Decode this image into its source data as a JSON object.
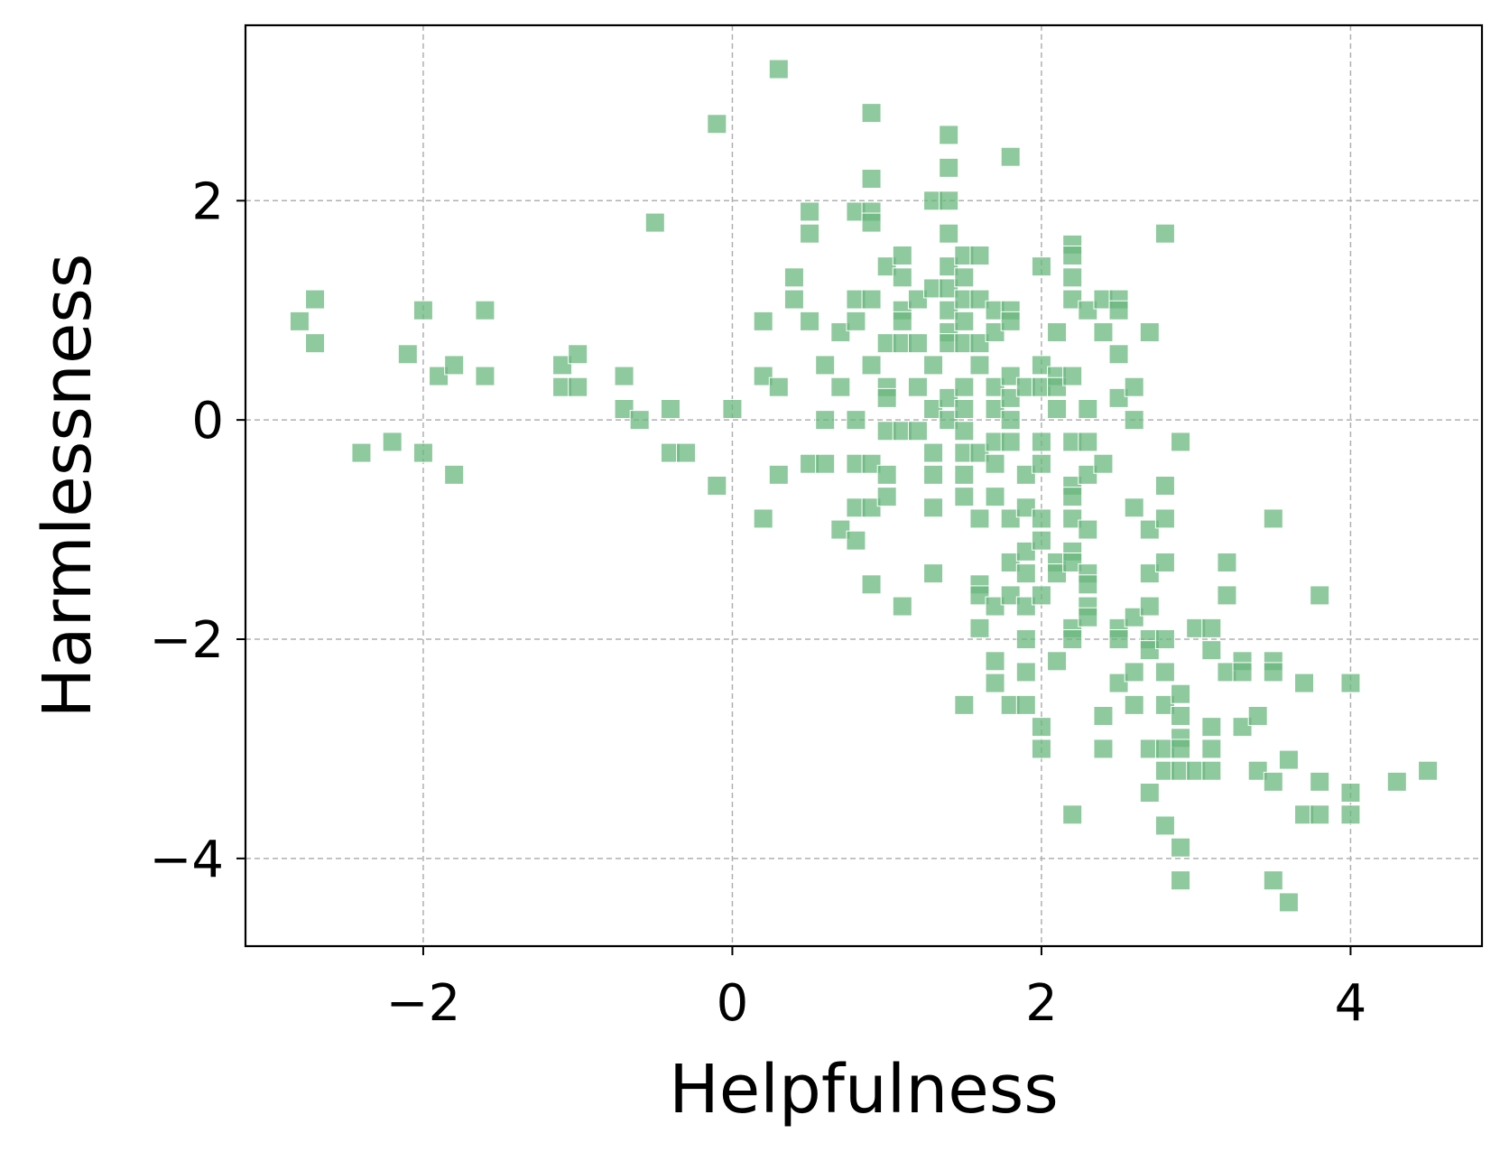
{
  "chart_data": {
    "type": "scatter",
    "xlabel": "Helpfulness",
    "ylabel": "Harmlessness",
    "xlim": [
      -3.15,
      4.85
    ],
    "ylim": [
      -4.8,
      3.6
    ],
    "x_ticks": [
      -2,
      0,
      2,
      4
    ],
    "y_ticks": [
      -4,
      -2,
      0,
      2
    ],
    "x_tick_labels": [
      "−2",
      "0",
      "2",
      "4"
    ],
    "y_tick_labels": [
      "−4",
      "−2",
      "0",
      "2"
    ],
    "grid": true,
    "marker": "square",
    "color": "#6ab77d",
    "points": [
      [
        -2.8,
        0.9
      ],
      [
        -2.7,
        1.1
      ],
      [
        -2.7,
        0.7
      ],
      [
        -2.4,
        -0.3
      ],
      [
        -2.2,
        -0.2
      ],
      [
        -2.1,
        0.6
      ],
      [
        -2.0,
        1.0
      ],
      [
        -2.0,
        -0.3
      ],
      [
        -1.9,
        0.4
      ],
      [
        -1.8,
        0.5
      ],
      [
        -1.8,
        -0.5
      ],
      [
        -1.6,
        1.0
      ],
      [
        -1.6,
        0.4
      ],
      [
        -1.1,
        0.5
      ],
      [
        -1.1,
        0.3
      ],
      [
        -1.0,
        0.6
      ],
      [
        -1.0,
        0.3
      ],
      [
        -0.7,
        0.4
      ],
      [
        -0.7,
        0.1
      ],
      [
        -0.6,
        0.0
      ],
      [
        -0.5,
        1.8
      ],
      [
        -0.4,
        0.1
      ],
      [
        -0.4,
        -0.3
      ],
      [
        -0.3,
        -0.3
      ],
      [
        -0.1,
        2.7
      ],
      [
        -0.1,
        -0.6
      ],
      [
        0.0,
        0.1
      ],
      [
        0.2,
        0.9
      ],
      [
        0.2,
        0.4
      ],
      [
        0.2,
        -0.9
      ],
      [
        0.3,
        3.2
      ],
      [
        0.3,
        0.3
      ],
      [
        0.3,
        -0.5
      ],
      [
        0.4,
        1.3
      ],
      [
        0.4,
        1.1
      ],
      [
        0.5,
        1.9
      ],
      [
        0.5,
        1.7
      ],
      [
        0.5,
        0.9
      ],
      [
        0.5,
        -0.4
      ],
      [
        0.6,
        0.5
      ],
      [
        0.6,
        0.0
      ],
      [
        0.6,
        -0.4
      ],
      [
        0.7,
        0.8
      ],
      [
        0.7,
        0.3
      ],
      [
        0.7,
        -1.0
      ],
      [
        0.8,
        1.9
      ],
      [
        0.8,
        1.1
      ],
      [
        0.8,
        0.9
      ],
      [
        0.8,
        0.0
      ],
      [
        0.8,
        -0.4
      ],
      [
        0.8,
        -0.8
      ],
      [
        0.8,
        -1.1
      ],
      [
        0.9,
        2.8
      ],
      [
        0.9,
        2.2
      ],
      [
        0.9,
        1.9
      ],
      [
        0.9,
        1.8
      ],
      [
        0.9,
        1.1
      ],
      [
        0.9,
        0.5
      ],
      [
        0.9,
        -0.4
      ],
      [
        0.9,
        -0.8
      ],
      [
        0.9,
        -1.5
      ],
      [
        1.0,
        1.4
      ],
      [
        1.0,
        0.7
      ],
      [
        1.0,
        0.3
      ],
      [
        1.0,
        0.2
      ],
      [
        1.0,
        -0.1
      ],
      [
        1.0,
        -0.5
      ],
      [
        1.0,
        -0.7
      ],
      [
        1.1,
        1.5
      ],
      [
        1.1,
        1.3
      ],
      [
        1.1,
        1.0
      ],
      [
        1.1,
        0.9
      ],
      [
        1.1,
        0.7
      ],
      [
        1.1,
        -0.1
      ],
      [
        1.1,
        -1.7
      ],
      [
        1.2,
        1.1
      ],
      [
        1.2,
        0.7
      ],
      [
        1.2,
        0.3
      ],
      [
        1.2,
        -0.1
      ],
      [
        1.3,
        2.0
      ],
      [
        1.3,
        1.2
      ],
      [
        1.3,
        0.5
      ],
      [
        1.3,
        0.1
      ],
      [
        1.3,
        -0.3
      ],
      [
        1.3,
        -0.5
      ],
      [
        1.3,
        -0.8
      ],
      [
        1.3,
        -1.4
      ],
      [
        1.4,
        2.6
      ],
      [
        1.4,
        2.3
      ],
      [
        1.4,
        2.0
      ],
      [
        1.4,
        1.7
      ],
      [
        1.4,
        1.4
      ],
      [
        1.4,
        1.2
      ],
      [
        1.4,
        1.0
      ],
      [
        1.4,
        0.8
      ],
      [
        1.4,
        0.7
      ],
      [
        1.4,
        0.2
      ],
      [
        1.4,
        0.0
      ],
      [
        1.5,
        1.5
      ],
      [
        1.5,
        1.3
      ],
      [
        1.5,
        1.1
      ],
      [
        1.5,
        0.9
      ],
      [
        1.5,
        0.7
      ],
      [
        1.5,
        0.3
      ],
      [
        1.5,
        0.1
      ],
      [
        1.5,
        -0.1
      ],
      [
        1.5,
        -0.3
      ],
      [
        1.5,
        -0.5
      ],
      [
        1.5,
        -0.7
      ],
      [
        1.5,
        -2.6
      ],
      [
        1.6,
        1.5
      ],
      [
        1.6,
        1.1
      ],
      [
        1.6,
        0.7
      ],
      [
        1.6,
        0.5
      ],
      [
        1.6,
        -0.3
      ],
      [
        1.6,
        -0.9
      ],
      [
        1.6,
        -1.5
      ],
      [
        1.6,
        -1.6
      ],
      [
        1.6,
        -1.9
      ],
      [
        1.7,
        1.0
      ],
      [
        1.7,
        0.8
      ],
      [
        1.7,
        0.3
      ],
      [
        1.7,
        0.1
      ],
      [
        1.7,
        -0.2
      ],
      [
        1.7,
        -0.4
      ],
      [
        1.7,
        -0.7
      ],
      [
        1.7,
        -1.7
      ],
      [
        1.7,
        -2.2
      ],
      [
        1.7,
        -2.4
      ],
      [
        1.8,
        2.4
      ],
      [
        1.8,
        1.0
      ],
      [
        1.8,
        0.9
      ],
      [
        1.8,
        0.4
      ],
      [
        1.8,
        0.2
      ],
      [
        1.8,
        0.0
      ],
      [
        1.8,
        -0.2
      ],
      [
        1.8,
        -0.9
      ],
      [
        1.8,
        -1.3
      ],
      [
        1.8,
        -1.6
      ],
      [
        1.8,
        -2.6
      ],
      [
        1.9,
        0.3
      ],
      [
        1.9,
        -0.5
      ],
      [
        1.9,
        -0.8
      ],
      [
        1.9,
        -1.2
      ],
      [
        1.9,
        -1.4
      ],
      [
        1.9,
        -1.7
      ],
      [
        1.9,
        -2.0
      ],
      [
        1.9,
        -2.3
      ],
      [
        1.9,
        -2.6
      ],
      [
        2.0,
        1.4
      ],
      [
        2.0,
        0.5
      ],
      [
        2.0,
        0.3
      ],
      [
        2.0,
        -0.2
      ],
      [
        2.0,
        -0.4
      ],
      [
        2.0,
        -0.9
      ],
      [
        2.0,
        -1.1
      ],
      [
        2.0,
        -1.6
      ],
      [
        2.0,
        -2.8
      ],
      [
        2.0,
        -3.0
      ],
      [
        2.1,
        0.8
      ],
      [
        2.1,
        0.4
      ],
      [
        2.1,
        0.3
      ],
      [
        2.1,
        0.1
      ],
      [
        2.1,
        -1.3
      ],
      [
        2.1,
        -1.4
      ],
      [
        2.1,
        -2.2
      ],
      [
        2.2,
        1.6
      ],
      [
        2.2,
        1.5
      ],
      [
        2.2,
        1.3
      ],
      [
        2.2,
        1.1
      ],
      [
        2.2,
        0.4
      ],
      [
        2.2,
        -0.2
      ],
      [
        2.2,
        -0.6
      ],
      [
        2.2,
        -0.7
      ],
      [
        2.2,
        -0.9
      ],
      [
        2.2,
        -1.2
      ],
      [
        2.2,
        -1.3
      ],
      [
        2.2,
        -1.9
      ],
      [
        2.2,
        -2.0
      ],
      [
        2.2,
        -3.6
      ],
      [
        2.3,
        1.0
      ],
      [
        2.3,
        0.1
      ],
      [
        2.3,
        -0.2
      ],
      [
        2.3,
        -0.5
      ],
      [
        2.3,
        -1.0
      ],
      [
        2.3,
        -1.4
      ],
      [
        2.3,
        -1.5
      ],
      [
        2.3,
        -1.7
      ],
      [
        2.3,
        -1.8
      ],
      [
        2.4,
        1.1
      ],
      [
        2.4,
        0.8
      ],
      [
        2.4,
        -0.4
      ],
      [
        2.4,
        -2.7
      ],
      [
        2.4,
        -3.0
      ],
      [
        2.5,
        1.1
      ],
      [
        2.5,
        1.0
      ],
      [
        2.5,
        0.6
      ],
      [
        2.5,
        0.2
      ],
      [
        2.5,
        -1.9
      ],
      [
        2.5,
        -2.0
      ],
      [
        2.5,
        -2.4
      ],
      [
        2.6,
        0.3
      ],
      [
        2.6,
        0.0
      ],
      [
        2.6,
        -0.8
      ],
      [
        2.6,
        -1.8
      ],
      [
        2.6,
        -2.3
      ],
      [
        2.6,
        -2.6
      ],
      [
        2.7,
        0.8
      ],
      [
        2.7,
        -1.0
      ],
      [
        2.7,
        -1.4
      ],
      [
        2.7,
        -1.7
      ],
      [
        2.7,
        -2.0
      ],
      [
        2.7,
        -2.1
      ],
      [
        2.7,
        -3.0
      ],
      [
        2.7,
        -3.4
      ],
      [
        2.8,
        1.7
      ],
      [
        2.8,
        -0.6
      ],
      [
        2.8,
        -0.9
      ],
      [
        2.8,
        -1.3
      ],
      [
        2.8,
        -2.0
      ],
      [
        2.8,
        -2.3
      ],
      [
        2.8,
        -2.6
      ],
      [
        2.8,
        -3.0
      ],
      [
        2.8,
        -3.2
      ],
      [
        2.8,
        -3.7
      ],
      [
        2.9,
        -0.2
      ],
      [
        2.9,
        -2.5
      ],
      [
        2.9,
        -2.7
      ],
      [
        2.9,
        -2.9
      ],
      [
        2.9,
        -3.0
      ],
      [
        2.9,
        -3.2
      ],
      [
        2.9,
        -3.9
      ],
      [
        2.9,
        -4.2
      ],
      [
        3.0,
        -1.9
      ],
      [
        3.0,
        -3.2
      ],
      [
        3.1,
        -1.9
      ],
      [
        3.1,
        -2.1
      ],
      [
        3.1,
        -2.8
      ],
      [
        3.1,
        -3.0
      ],
      [
        3.1,
        -3.2
      ],
      [
        3.2,
        -1.3
      ],
      [
        3.2,
        -1.6
      ],
      [
        3.2,
        -2.3
      ],
      [
        3.3,
        -2.2
      ],
      [
        3.3,
        -2.3
      ],
      [
        3.3,
        -2.8
      ],
      [
        3.4,
        -2.7
      ],
      [
        3.4,
        -3.2
      ],
      [
        3.5,
        -0.9
      ],
      [
        3.5,
        -2.2
      ],
      [
        3.5,
        -2.3
      ],
      [
        3.5,
        -3.3
      ],
      [
        3.5,
        -4.2
      ],
      [
        3.6,
        -3.1
      ],
      [
        3.6,
        -4.4
      ],
      [
        3.7,
        -2.4
      ],
      [
        3.7,
        -3.6
      ],
      [
        3.8,
        -1.6
      ],
      [
        3.8,
        -3.3
      ],
      [
        3.8,
        -3.6
      ],
      [
        4.0,
        -2.4
      ],
      [
        4.0,
        -3.4
      ],
      [
        4.0,
        -3.6
      ],
      [
        4.3,
        -3.3
      ],
      [
        4.5,
        -3.2
      ]
    ]
  }
}
